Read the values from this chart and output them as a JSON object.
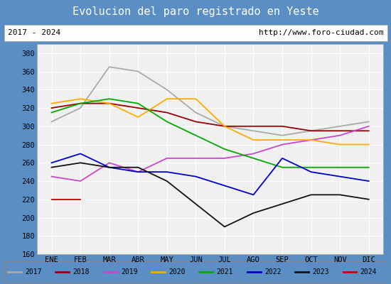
{
  "title": "Evolucion del paro registrado en Yeste",
  "subtitle_left": "2017 - 2024",
  "subtitle_right": "http://www.foro-ciudad.com",
  "title_bg": "#5b8ec4",
  "months": [
    "ENE",
    "FEB",
    "MAR",
    "ABR",
    "MAY",
    "JUN",
    "JUL",
    "AGO",
    "SEP",
    "OCT",
    "NOV",
    "DIC"
  ],
  "ylim": [
    160,
    390
  ],
  "yticks": [
    160,
    180,
    200,
    220,
    240,
    260,
    280,
    300,
    320,
    340,
    360,
    380
  ],
  "series": {
    "2017": {
      "color": "#aaaaaa",
      "data": [
        305,
        320,
        365,
        360,
        340,
        315,
        300,
        295,
        290,
        295,
        300,
        305
      ]
    },
    "2018": {
      "color": "#990000",
      "data": [
        320,
        325,
        325,
        320,
        315,
        305,
        300,
        300,
        300,
        295,
        295,
        295
      ]
    },
    "2019": {
      "color": "#cc44cc",
      "data": [
        245,
        240,
        260,
        250,
        265,
        265,
        265,
        270,
        280,
        285,
        290,
        300
      ]
    },
    "2020": {
      "color": "#ffaa00",
      "data": [
        325,
        330,
        325,
        310,
        330,
        330,
        300,
        285,
        285,
        285,
        280,
        280
      ]
    },
    "2021": {
      "color": "#00aa00",
      "data": [
        315,
        325,
        330,
        325,
        305,
        290,
        275,
        265,
        255,
        255,
        255,
        255
      ]
    },
    "2022": {
      "color": "#0000cc",
      "data": [
        260,
        270,
        255,
        250,
        250,
        245,
        235,
        225,
        265,
        250,
        245,
        240
      ]
    },
    "2023": {
      "color": "#111111",
      "data": [
        255,
        260,
        255,
        255,
        240,
        215,
        190,
        205,
        215,
        225,
        225,
        220
      ]
    },
    "2024": {
      "color": "#cc0000",
      "data": [
        220,
        220,
        null,
        null,
        null,
        null,
        null,
        null,
        null,
        null,
        null,
        null
      ]
    }
  }
}
